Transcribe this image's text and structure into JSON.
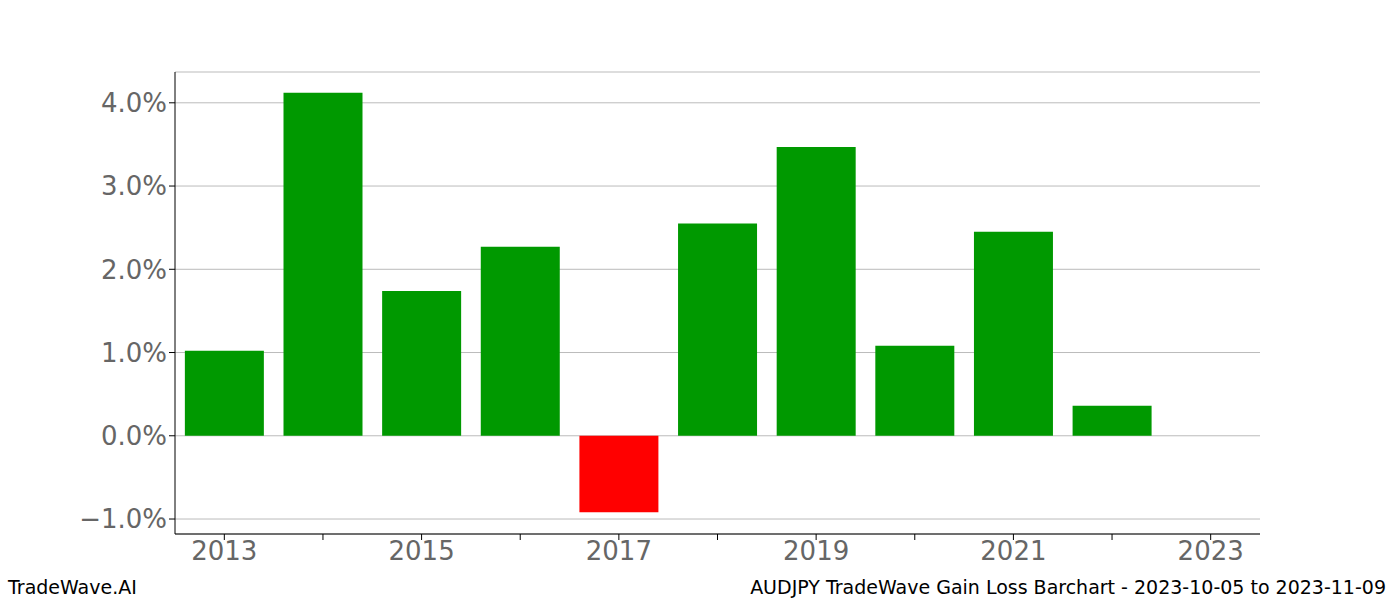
{
  "chart_data": {
    "type": "bar",
    "annotations": [
      "TradeWave.AI",
      "AUDJPY TradeWave Gain Loss Barchart - 2023-10-05 to 2023-11-09"
    ],
    "categories": [
      "2013",
      null,
      "2015",
      null,
      "2017",
      null,
      "2019",
      null,
      "2021",
      null,
      "2023"
    ],
    "values": [
      1.02,
      4.12,
      1.74,
      2.27,
      -0.92,
      2.55,
      3.47,
      1.08,
      2.45,
      0.36,
      null
    ],
    "colors": [
      "#009900",
      "#009900",
      "#009900",
      "#009900",
      "#ff0000",
      "#009900",
      "#009900",
      "#009900",
      "#009900",
      "#009900",
      "#009900"
    ],
    "ylim": [
      -1.18,
      4.37
    ],
    "yticks": [
      {
        "value": -1,
        "label": "−1.0%"
      },
      {
        "value": 0,
        "label": "0.0%"
      },
      {
        "value": 1,
        "label": "1.0%"
      },
      {
        "value": 2,
        "label": "2.0%"
      },
      {
        "value": 3,
        "label": "3.0%"
      },
      {
        "value": 4,
        "label": "4.0%"
      }
    ],
    "grid": true
  }
}
